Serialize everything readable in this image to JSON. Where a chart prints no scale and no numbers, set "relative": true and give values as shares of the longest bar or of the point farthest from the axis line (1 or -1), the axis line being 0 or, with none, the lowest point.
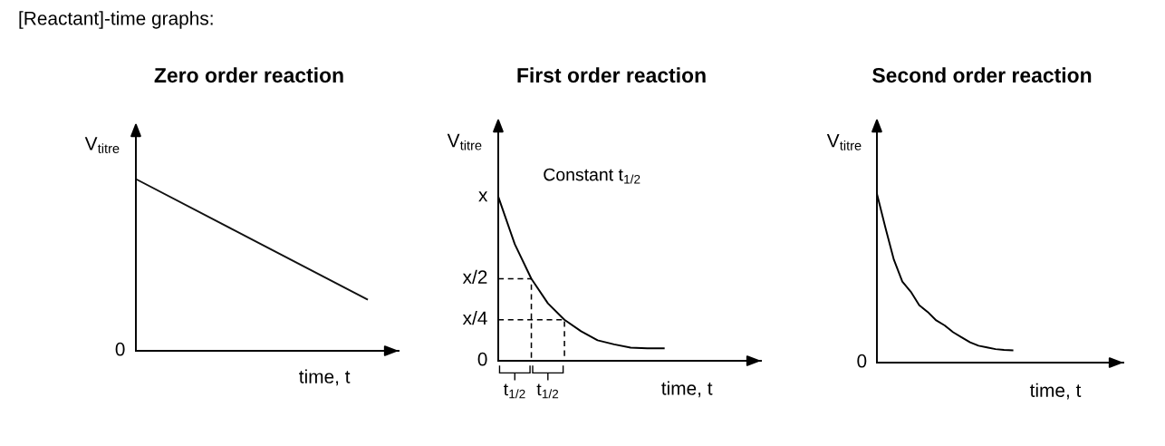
{
  "chart_data": [
    {
      "type": "line",
      "title": "Zero order reaction",
      "ylabel": "V$_{titre}$",
      "xlabel": "time, t",
      "relative": true,
      "categories": [
        null,
        null,
        null
      ],
      "series": [
        {
          "color": "#111111",
          "values": [
            1,
            0.65,
            0.3
          ]
        }
      ],
      "annotations": [
        "[Reactant]-time graphs:",
        "0"
      ]
    },
    {
      "type": "line",
      "title": "First order reaction",
      "ylabel": "V$_{titre}$",
      "xlabel": "time, t",
      "relative": true,
      "categories": [
        null,
        null,
        null,
        null,
        null,
        null,
        null,
        null,
        null,
        null,
        null
      ],
      "series": [
        {
          "color": "#000000",
          "values": [
            1,
            0.71,
            0.5,
            0.35,
            0.25,
            0.18,
            0.125,
            0.1,
            0.08,
            0.076,
            0.076
          ]
        }
      ],
      "ref_lines": [
        {
          "axis": "y",
          "value": 0.5,
          "label": "x/2",
          "line_style": "dashed",
          "color": "#000000"
        },
        {
          "axis": "y",
          "value": 0.25,
          "label": "x/4",
          "line_style": "dashed",
          "color": "#000000"
        }
      ],
      "annotations": [
        "Constant t$_{1/2}$",
        "x",
        "t$_{1/2}$",
        "t$_{1/2}$",
        "0"
      ]
    },
    {
      "type": "line",
      "title": "Second order reaction",
      "ylabel": "V$_{titre}$",
      "xlabel": "time, t",
      "relative": true,
      "categories": [
        null,
        null,
        null,
        null,
        null,
        null,
        null,
        null,
        null,
        null,
        null,
        null,
        null,
        null,
        null,
        null,
        null
      ],
      "series": [
        {
          "color": "#000000",
          "values": [
            1,
            0.8,
            0.61,
            0.48,
            0.42,
            0.34,
            0.3,
            0.25,
            0.22,
            0.18,
            0.15,
            0.12,
            0.1,
            0.09,
            0.08,
            0.075,
            0.073
          ]
        }
      ],
      "annotations": [
        "0"
      ]
    }
  ]
}
